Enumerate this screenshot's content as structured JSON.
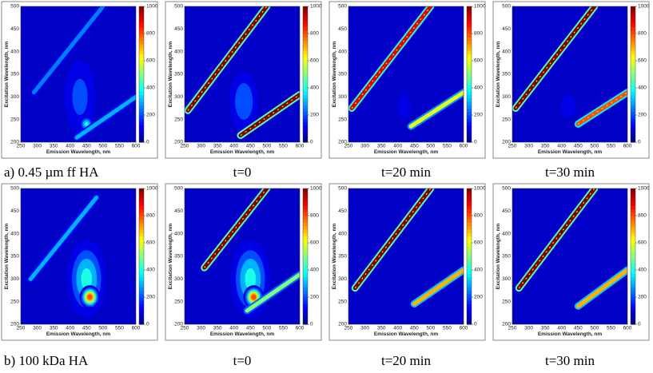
{
  "chart_data": [
    {
      "type": "contour",
      "caption": "a)  0.45 µm ff HA",
      "xlabel": "Emission Wavelength, nm",
      "ylabel": "Excitation Wavelength, nm",
      "xlim": [
        250,
        600
      ],
      "xticks": [
        250,
        300,
        350,
        400,
        450,
        500,
        550,
        600
      ],
      "ylim": [
        200,
        500
      ],
      "yticks": [
        200,
        250,
        300,
        350,
        400,
        450,
        500
      ],
      "clim": [
        0,
        1000
      ],
      "cticks": [
        0,
        200,
        400,
        600,
        800,
        1000
      ],
      "lines": [
        {
          "em": [
            290,
            500
          ],
          "ex": [
            310,
            500
          ],
          "z": 250
        },
        {
          "em": [
            420,
            600
          ],
          "ex": [
            210,
            300
          ],
          "z": 300
        }
      ],
      "peaks": [
        {
          "x": 430,
          "y": 300,
          "z": 250,
          "wx": 70,
          "wy": 120
        },
        {
          "x": 450,
          "y": 240,
          "z": 450,
          "wx": 25,
          "wy": 20
        }
      ]
    },
    {
      "type": "contour",
      "caption": "t=0",
      "xlabel": "Emission Wavelength, nm",
      "ylabel": "Excitation Wavelength, nm",
      "xlim": [
        250,
        600
      ],
      "xticks": [
        250,
        300,
        350,
        400,
        450,
        500,
        550,
        600
      ],
      "ylim": [
        200,
        500
      ],
      "yticks": [
        200,
        250,
        300,
        350,
        400,
        450,
        500
      ],
      "clim": [
        0,
        1000
      ],
      "cticks": [
        0,
        200,
        400,
        600,
        800,
        1000
      ],
      "lines": [
        {
          "em": [
            260,
            500
          ],
          "ex": [
            270,
            500
          ],
          "z": 1000
        },
        {
          "em": [
            420,
            600
          ],
          "ex": [
            215,
            305
          ],
          "z": 1000
        }
      ],
      "peaks": [
        {
          "x": 430,
          "y": 290,
          "z": 300,
          "wx": 60,
          "wy": 90
        }
      ]
    },
    {
      "type": "contour",
      "caption": "t=20 min",
      "xlabel": "Emission Wavelength, nm",
      "ylabel": "Excitation Wavelength, nm",
      "xlim": [
        250,
        600
      ],
      "xticks": [
        250,
        300,
        350,
        400,
        450,
        500,
        550,
        600
      ],
      "ylim": [
        200,
        500
      ],
      "yticks": [
        200,
        250,
        300,
        350,
        400,
        450,
        500
      ],
      "clim": [
        0,
        1000
      ],
      "cticks": [
        0,
        200,
        400,
        600,
        800,
        1000
      ],
      "lines": [
        {
          "em": [
            260,
            500
          ],
          "ex": [
            275,
            500
          ],
          "z": 900
        },
        {
          "em": [
            440,
            600
          ],
          "ex": [
            235,
            310
          ],
          "z": 600
        }
      ],
      "peaks": [
        {
          "x": 420,
          "y": 280,
          "z": 150,
          "wx": 50,
          "wy": 60
        }
      ]
    },
    {
      "type": "contour",
      "caption": "t=30 min",
      "xlabel": "Emission Wavelength, nm",
      "ylabel": "Excitation Wavelength, nm",
      "xlim": [
        250,
        600
      ],
      "xticks": [
        250,
        300,
        350,
        400,
        450,
        500,
        550,
        600
      ],
      "ylim": [
        200,
        500
      ],
      "yticks": [
        200,
        250,
        300,
        350,
        400,
        450,
        500
      ],
      "clim": [
        0,
        1000
      ],
      "cticks": [
        0,
        200,
        400,
        600,
        800,
        1000
      ],
      "lines": [
        {
          "em": [
            260,
            500
          ],
          "ex": [
            275,
            500
          ],
          "z": 1000
        },
        {
          "em": [
            450,
            600
          ],
          "ex": [
            240,
            310
          ],
          "z": 800
        }
      ],
      "peaks": [
        {
          "x": 420,
          "y": 280,
          "z": 150,
          "wx": 50,
          "wy": 60
        }
      ]
    },
    {
      "type": "contour",
      "caption": "b)  100 kDa HA",
      "xlabel": "Emission Wavelength, nm",
      "ylabel": "Excitation Wavelength, nm",
      "xlim": [
        250,
        600
      ],
      "xticks": [
        250,
        300,
        350,
        400,
        450,
        500,
        550,
        600
      ],
      "ylim": [
        200,
        500
      ],
      "yticks": [
        200,
        250,
        300,
        350,
        400,
        450,
        500
      ],
      "clim": [
        0,
        1000
      ],
      "cticks": [
        0,
        200,
        400,
        600,
        800,
        1000
      ],
      "lines": [
        {
          "em": [
            280,
            480
          ],
          "ex": [
            300,
            480
          ],
          "z": 300
        }
      ],
      "peaks": [
        {
          "x": 450,
          "y": 300,
          "z": 450,
          "wx": 70,
          "wy": 100
        },
        {
          "x": 460,
          "y": 260,
          "z": 900,
          "wx": 30,
          "wy": 25
        }
      ]
    },
    {
      "type": "contour",
      "caption": "t=0",
      "xlabel": "Emission Wavelength, nm",
      "ylabel": "Excitation Wavelength, nm",
      "xlim": [
        250,
        600
      ],
      "xticks": [
        250,
        300,
        350,
        400,
        450,
        500,
        550,
        600
      ],
      "ylim": [
        200,
        500
      ],
      "yticks": [
        200,
        250,
        300,
        350,
        400,
        450,
        500
      ],
      "clim": [
        0,
        1000
      ],
      "cticks": [
        0,
        200,
        400,
        600,
        800,
        1000
      ],
      "lines": [
        {
          "em": [
            310,
            500
          ],
          "ex": [
            325,
            500
          ],
          "z": 1000
        },
        {
          "em": [
            440,
            600
          ],
          "ex": [
            230,
            310
          ],
          "z": 500
        }
      ],
      "peaks": [
        {
          "x": 450,
          "y": 300,
          "z": 450,
          "wx": 70,
          "wy": 100
        },
        {
          "x": 460,
          "y": 260,
          "z": 900,
          "wx": 30,
          "wy": 25
        }
      ]
    },
    {
      "type": "contour",
      "caption": "t=20 min",
      "xlabel": "Emission Wavelength, nm",
      "ylabel": "Excitation Wavelength, nm",
      "xlim": [
        250,
        600
      ],
      "xticks": [
        250,
        300,
        350,
        400,
        450,
        500,
        550,
        600
      ],
      "ylim": [
        200,
        500
      ],
      "yticks": [
        200,
        250,
        300,
        350,
        400,
        450,
        500
      ],
      "clim": [
        0,
        1000
      ],
      "cticks": [
        0,
        200,
        400,
        600,
        800,
        1000
      ],
      "lines": [
        {
          "em": [
            270,
            500
          ],
          "ex": [
            280,
            500
          ],
          "z": 1000
        },
        {
          "em": [
            450,
            600
          ],
          "ex": [
            245,
            320
          ],
          "z": 700
        }
      ],
      "peaks": []
    },
    {
      "type": "contour",
      "caption": "t=30 min",
      "xlabel": "Emission Wavelength, nm",
      "ylabel": "Excitation Wavelength, nm",
      "xlim": [
        250,
        600
      ],
      "xticks": [
        250,
        300,
        350,
        400,
        450,
        500,
        550,
        600
      ],
      "ylim": [
        200,
        500
      ],
      "yticks": [
        200,
        250,
        300,
        350,
        400,
        450,
        500
      ],
      "clim": [
        0,
        1000
      ],
      "cticks": [
        0,
        200,
        400,
        600,
        800,
        1000
      ],
      "lines": [
        {
          "em": [
            270,
            500
          ],
          "ex": [
            280,
            500
          ],
          "z": 1000
        },
        {
          "em": [
            450,
            600
          ],
          "ex": [
            240,
            320
          ],
          "z": 700
        }
      ],
      "peaks": []
    }
  ]
}
